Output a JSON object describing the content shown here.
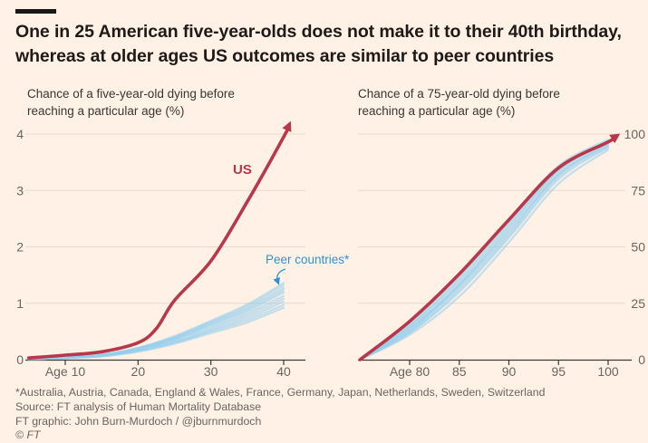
{
  "header": {
    "title_line1": "One in 25 American five-year-olds does not make it to their 40th birthday,",
    "title_line2": "whereas at older ages US outcomes are similar to peer countries"
  },
  "colors": {
    "background": "#fff1e5",
    "us_red": "#b8374a",
    "peer_blue": "#93cdec",
    "peer_label_blue": "#2e93cf",
    "gridline": "#e7d9cc",
    "axis_line": "#3f3a36",
    "tick_text": "#6b645f"
  },
  "chart_data": [
    {
      "type": "line",
      "title_line1": "Chance of a five-year-old dying before",
      "title_line2": "reaching a particular age (%)",
      "xlim": [
        5,
        41
      ],
      "ylim": [
        0,
        4.3
      ],
      "x_ticks": [
        {
          "value": 10,
          "label": "Age 10"
        },
        {
          "value": 20,
          "label": "20"
        },
        {
          "value": 30,
          "label": "30"
        },
        {
          "value": 40,
          "label": "40"
        }
      ],
      "y_ticks": [
        {
          "value": 0,
          "label": "0"
        },
        {
          "value": 1,
          "label": "1"
        },
        {
          "value": 2,
          "label": "2"
        },
        {
          "value": 3,
          "label": "3"
        },
        {
          "value": 4,
          "label": "4"
        }
      ],
      "us": {
        "name": "US",
        "x": [
          5,
          10,
          15,
          20,
          22.5,
          25,
          30,
          35,
          40,
          40.7
        ],
        "values": [
          0.03,
          0.08,
          0.14,
          0.3,
          0.55,
          1.05,
          1.75,
          2.8,
          3.95,
          4.15
        ]
      },
      "peers": {
        "name": "Peer countries",
        "x": [
          5,
          10,
          15,
          20,
          25,
          30,
          35,
          40
        ],
        "lines": [
          [
            0.01,
            0.03,
            0.06,
            0.14,
            0.28,
            0.47,
            0.66,
            0.92
          ],
          [
            0.01,
            0.03,
            0.06,
            0.15,
            0.3,
            0.5,
            0.7,
            0.97
          ],
          [
            0.01,
            0.03,
            0.07,
            0.16,
            0.31,
            0.52,
            0.74,
            1.03
          ],
          [
            0.01,
            0.03,
            0.07,
            0.17,
            0.33,
            0.55,
            0.78,
            1.08
          ],
          [
            0.01,
            0.03,
            0.07,
            0.18,
            0.35,
            0.58,
            0.82,
            1.13
          ],
          [
            0.01,
            0.03,
            0.08,
            0.19,
            0.36,
            0.61,
            0.86,
            1.19
          ],
          [
            0.01,
            0.03,
            0.08,
            0.19,
            0.38,
            0.63,
            0.89,
            1.23
          ],
          [
            0.01,
            0.04,
            0.08,
            0.2,
            0.39,
            0.65,
            0.92,
            1.27
          ],
          [
            0.01,
            0.04,
            0.09,
            0.21,
            0.4,
            0.67,
            0.95,
            1.32
          ],
          [
            0.01,
            0.04,
            0.09,
            0.21,
            0.42,
            0.69,
            0.98,
            1.36
          ]
        ]
      },
      "annotations": {
        "us": "US",
        "peer": "Peer countries*"
      }
    },
    {
      "type": "line",
      "title_line1": "Chance of a 75-year-old dying before",
      "title_line2": "reaching a particular age (%)",
      "xlim": [
        75,
        101
      ],
      "ylim": [
        0,
        100
      ],
      "x_ticks": [
        {
          "value": 80,
          "label": "Age 80"
        },
        {
          "value": 85,
          "label": "85"
        },
        {
          "value": 90,
          "label": "90"
        },
        {
          "value": 95,
          "label": "95"
        },
        {
          "value": 100,
          "label": "100"
        }
      ],
      "y_ticks": [
        {
          "value": 0,
          "label": "0"
        },
        {
          "value": 25,
          "label": "25"
        },
        {
          "value": 50,
          "label": "50"
        },
        {
          "value": 75,
          "label": "75"
        },
        {
          "value": 100,
          "label": "100"
        }
      ],
      "us": {
        "name": "US",
        "x": [
          75,
          80,
          85,
          90,
          95,
          100,
          100.8
        ],
        "values": [
          0,
          17,
          38,
          62,
          85,
          96.5,
          99
        ]
      },
      "peers": {
        "name": "Peer countries",
        "x": [
          75,
          80,
          85,
          90,
          95,
          100
        ],
        "lines": [
          [
            0,
            11,
            28,
            52,
            78,
            93
          ],
          [
            0,
            12,
            30,
            54,
            80,
            94
          ],
          [
            0,
            12,
            31,
            55,
            81,
            94.5
          ],
          [
            0,
            13,
            32,
            56,
            82,
            95
          ],
          [
            0,
            13,
            33,
            57,
            82,
            95.5
          ],
          [
            0,
            14,
            33,
            58,
            83,
            96
          ],
          [
            0,
            14,
            34,
            59,
            84,
            96.5
          ],
          [
            0,
            15,
            35,
            60,
            84,
            97
          ],
          [
            0,
            15,
            36,
            61,
            85,
            97
          ],
          [
            0,
            16,
            37,
            62,
            86,
            97.5
          ]
        ]
      }
    }
  ],
  "footer": {
    "footnote": "*Australia, Austria, Canada, England & Wales, France, Germany, Japan, Netherlands, Sweden, Switzerland",
    "source": "Source: FT analysis of Human Mortality Database",
    "credit": "FT graphic: John Burn-Murdoch / @jburnmurdoch",
    "copyright": "© FT"
  }
}
